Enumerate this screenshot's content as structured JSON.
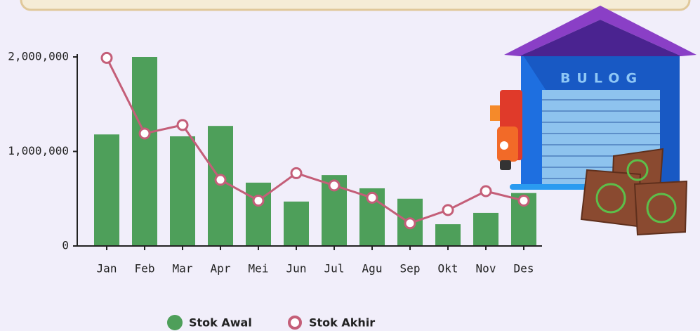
{
  "chart_data": {
    "type": "bar_line",
    "categories": [
      "Jan",
      "Feb",
      "Mar",
      "Apr",
      "Mei",
      "Jun",
      "Jul",
      "Agu",
      "Sep",
      "Okt",
      "Nov",
      "Des"
    ],
    "series": [
      {
        "name": "Stok Awal",
        "type": "bar",
        "color": "#4e9f5a",
        "values": [
          1180000,
          2000000,
          1160000,
          1270000,
          670000,
          470000,
          750000,
          610000,
          500000,
          230000,
          350000,
          560000
        ]
      },
      {
        "name": "Stok Akhir",
        "type": "line",
        "color": "#c45e78",
        "values": [
          1990000,
          1190000,
          1280000,
          700000,
          480000,
          770000,
          640000,
          510000,
          240000,
          380000,
          580000,
          480000
        ]
      }
    ],
    "ylim": [
      0,
      2000000
    ],
    "yticks": [
      0,
      {
        "value": 1000000,
        "label": "1,000,000"
      },
      {
        "value": 2000000,
        "label": "2,000,000"
      }
    ],
    "legend": "bottom"
  },
  "illustration": {
    "sign": "BULOG"
  }
}
